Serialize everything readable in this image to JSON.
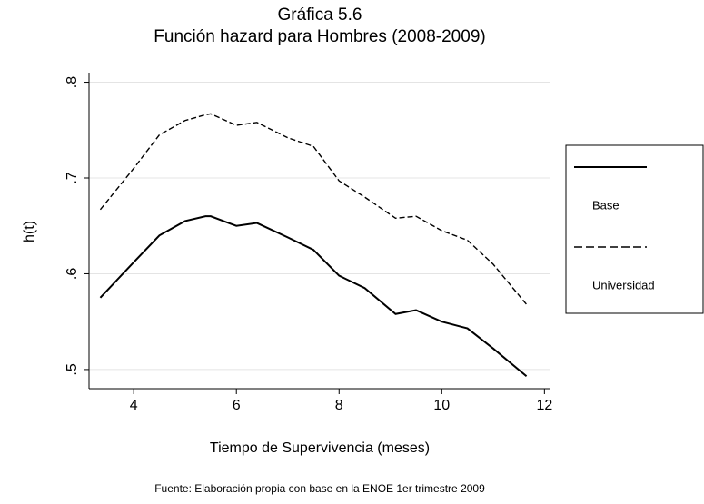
{
  "chart_data": {
    "type": "line",
    "title": "Gráfica 5.6",
    "subtitle": "Función hazard para Hombres (2008-2009)",
    "x_label": "Tiempo de Supervivencia (meses)",
    "y_label": "h(t)",
    "note": "Fuente: Elaboración propia con base en la ENOE 1er trimestre 2009",
    "x": [
      3.35,
      4,
      4.5,
      5,
      5.4,
      5.5,
      6,
      6.4,
      7,
      7.5,
      8,
      8.5,
      9.1,
      9.5,
      10,
      10.5,
      11,
      11.65
    ],
    "series": [
      {
        "name": "Base",
        "color": "#000000",
        "dash": "solid",
        "values": [
          0.575,
          0.612,
          0.64,
          0.655,
          0.66,
          0.66,
          0.65,
          0.653,
          0.638,
          0.625,
          0.598,
          0.585,
          0.558,
          0.562,
          0.55,
          0.543,
          0.522,
          0.493
        ]
      },
      {
        "name": "Universidad",
        "color": "#000000",
        "dash": "dashed",
        "values": [
          0.667,
          0.71,
          0.745,
          0.76,
          0.766,
          0.767,
          0.755,
          0.758,
          0.742,
          0.733,
          0.697,
          0.68,
          0.658,
          0.66,
          0.645,
          0.635,
          0.61,
          0.568
        ]
      }
    ],
    "xlim": [
      3.13,
      12.1
    ],
    "ylim": [
      0.48,
      0.81
    ],
    "xticks": [
      4,
      6,
      8,
      10,
      12
    ],
    "yticks": [
      {
        "value": 0.5,
        "label": ".5"
      },
      {
        "value": 0.6,
        "label": ".6"
      },
      {
        "value": 0.7,
        "label": ".7"
      },
      {
        "value": 0.8,
        "label": ".8"
      }
    ],
    "grid": true,
    "legend": "right"
  }
}
